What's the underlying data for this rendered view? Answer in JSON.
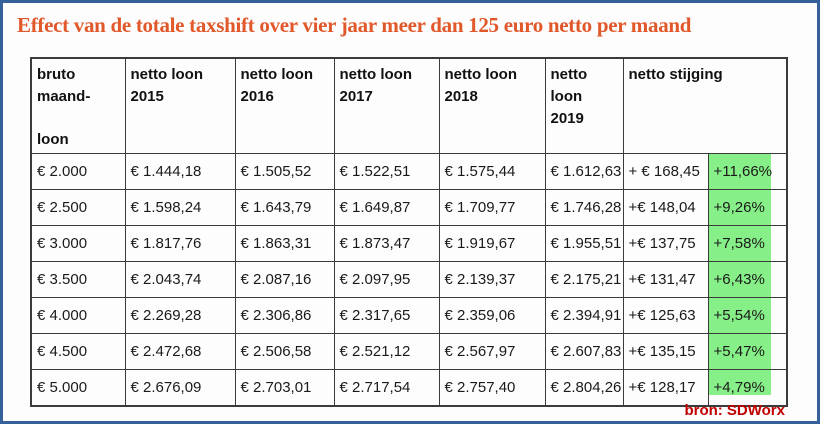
{
  "title": "Effect van de totale taxshift over vier jaar meer dan 125 euro netto per maand",
  "source_credit": "bron: SDWorx",
  "colors": {
    "title_orange": "#E1582A",
    "page_border_blue": "#35609A",
    "highlight_green": "#87EF87",
    "source_red": "#C00000",
    "grid_black": "#3b3b3b"
  },
  "table": {
    "headers": [
      "bruto\nmaand-\n\nloon",
      "netto loon\n2015",
      "netto loon\n2016",
      "netto loon\n2017",
      "netto loon\n2018",
      "netto loon\n2019",
      "netto stijging"
    ],
    "col_names": [
      "cell-bruto-maandloon",
      "cell-netto-loon-2015",
      "cell-netto-loon-2016",
      "cell-netto-loon-2017",
      "cell-netto-loon-2018",
      "cell-netto-loon-2019",
      "cell-netto-stijging-euro",
      "cell-netto-stijging-pct"
    ],
    "rows": [
      [
        "€ 2.000",
        "€ 1.444,18",
        "€ 1.505,52",
        "€ 1.522,51",
        "€ 1.575,44",
        "€ 1.612,63",
        "+ € 168,45",
        "+11,66%"
      ],
      [
        "€ 2.500",
        "€ 1.598,24",
        "€ 1.643,79",
        "€ 1.649,87",
        "€ 1.709,77",
        "€ 1.746,28",
        "+€ 148,04",
        "+9,26%"
      ],
      [
        "€ 3.000",
        "€ 1.817,76",
        "€ 1.863,31",
        "€ 1.873,47",
        "€ 1.919,67",
        "€ 1.955,51",
        "+€ 137,75",
        "+7,58%"
      ],
      [
        "€ 3.500",
        "€ 2.043,74",
        "€ 2.087,16",
        "€ 2.097,95",
        "€ 2.139,37",
        "€ 2.175,21",
        "+€ 131,47",
        "+6,43%"
      ],
      [
        "€ 4.000",
        "€ 2.269,28",
        "€ 2.306,86",
        "€ 2.317,65",
        "€ 2.359,06",
        "€ 2.394,91",
        "+€ 125,63",
        "+5,54%"
      ],
      [
        "€ 4.500",
        "€ 2.472,68",
        "€ 2.506,58",
        "€ 2.521,12",
        "€ 2.567,97",
        "€ 2.607,83",
        "+€ 135,15",
        "+5,47%"
      ],
      [
        "€ 5.000",
        "€ 2.676,09",
        "€ 2.703,01",
        "€ 2.717,54",
        "€ 2.757,40",
        "€ 2.804,26",
        "+€ 128,17",
        "+4,79%"
      ]
    ]
  },
  "chart_data": {
    "type": "table",
    "title": "Effect van de totale taxshift over vier jaar meer dan 125 euro netto per maand",
    "columns": [
      "bruto maand-loon",
      "netto loon 2015",
      "netto loon 2016",
      "netto loon 2017",
      "netto loon 2018",
      "netto loon 2019",
      "netto stijging (EUR)",
      "netto stijging (%)"
    ],
    "rows": [
      [
        2000,
        1444.18,
        1505.52,
        1522.51,
        1575.44,
        1612.63,
        168.45,
        11.66
      ],
      [
        2500,
        1598.24,
        1643.79,
        1649.87,
        1709.77,
        1746.28,
        148.04,
        9.26
      ],
      [
        3000,
        1817.76,
        1863.31,
        1873.47,
        1919.67,
        1955.51,
        137.75,
        7.58
      ],
      [
        3500,
        2043.74,
        2087.16,
        2097.95,
        2139.37,
        2175.21,
        131.47,
        6.43
      ],
      [
        4000,
        2269.28,
        2306.86,
        2317.65,
        2359.06,
        2394.91,
        125.63,
        5.54
      ],
      [
        4500,
        2472.68,
        2506.58,
        2521.12,
        2567.97,
        2607.83,
        135.15,
        5.47
      ],
      [
        5000,
        2676.09,
        2703.01,
        2717.54,
        2757.4,
        2804.26,
        128.17,
        4.79
      ]
    ],
    "highlighted_column": "netto stijging (%)",
    "source": "bron: SDWorx"
  }
}
